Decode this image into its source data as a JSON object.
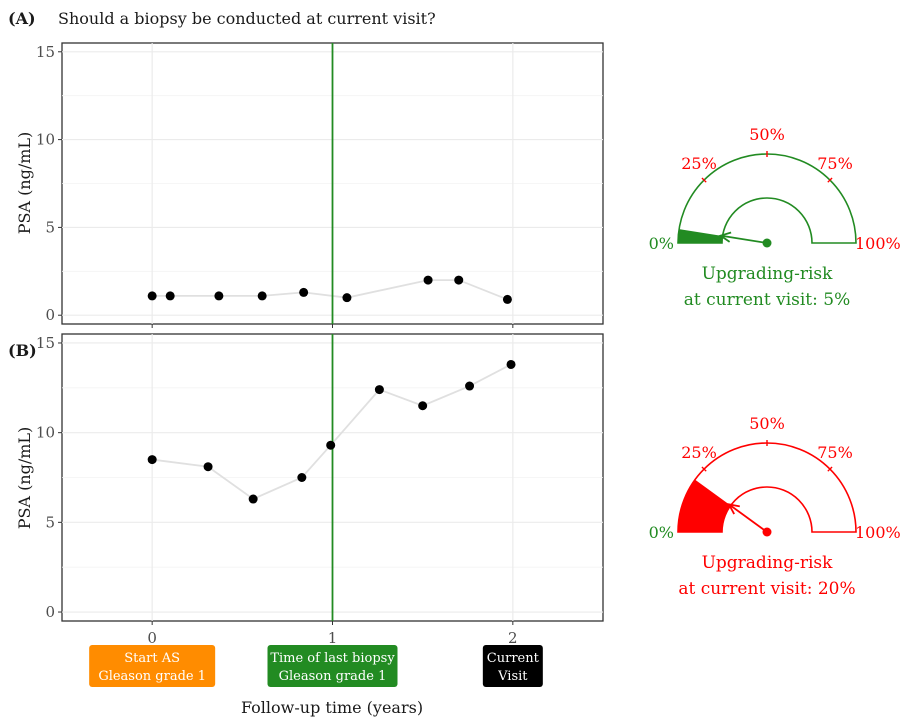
{
  "figure": {
    "title": "Should a biopsy be conducted at current visit?",
    "xlabel": "Follow-up time (years)",
    "panel_labels": [
      "(A)",
      "(B)"
    ],
    "colors": {
      "green": "#228B22",
      "red": "#ff0000",
      "orange": "#ff8c00",
      "black": "#000000",
      "line": "#e0e0e0",
      "grid": "#ebebeb"
    }
  },
  "events": [
    {
      "label_line1": "Start AS",
      "label_line2": "Gleason grade 1",
      "x": 0,
      "color": "#ff8c00"
    },
    {
      "label_line1": "Time of last biopsy",
      "label_line2": "Gleason grade 1",
      "x": 1,
      "color": "#228B22"
    },
    {
      "label_line1": "Current",
      "label_line2": "Visit",
      "x": 2,
      "color": "#000000"
    }
  ],
  "gauges": [
    {
      "risk_percent": 5,
      "color": "#228B22",
      "caption_line1": "Upgrading-risk",
      "caption_line2": "at current visit: 5%",
      "tick_labels": [
        "0%",
        "25%",
        "50%",
        "75%",
        "100%"
      ],
      "tick_colors": [
        "#228B22",
        "#ff0000",
        "#ff0000",
        "#ff0000",
        "#ff0000"
      ]
    },
    {
      "risk_percent": 20,
      "color": "#ff0000",
      "caption_line1": "Upgrading-risk",
      "caption_line2": "at current visit: 20%",
      "tick_labels": [
        "0%",
        "25%",
        "50%",
        "75%",
        "100%"
      ],
      "tick_colors": [
        "#228B22",
        "#ff0000",
        "#ff0000",
        "#ff0000",
        "#ff0000"
      ]
    }
  ],
  "chart_data": [
    {
      "type": "line",
      "panel": "(A)",
      "title": "Should a biopsy be conducted at current visit?",
      "xlabel": "Follow-up time (years)",
      "ylabel": "PSA  (ng/mL)",
      "xlim": [
        -0.5,
        2.5
      ],
      "ylim": [
        -0.5,
        15.5
      ],
      "x_ticks": [
        0,
        1,
        2
      ],
      "y_ticks": [
        0,
        5,
        10,
        15
      ],
      "grid": true,
      "vline_x": 1,
      "x": [
        0,
        0.1,
        0.37,
        0.61,
        0.84,
        1.08,
        1.53,
        1.7,
        1.97
      ],
      "y": [
        1.1,
        1.1,
        1.1,
        1.1,
        1.3,
        1.0,
        2.0,
        2.0,
        0.9
      ]
    },
    {
      "type": "line",
      "panel": "(B)",
      "xlabel": "Follow-up time (years)",
      "ylabel": "PSA  (ng/mL)",
      "xlim": [
        -0.5,
        2.5
      ],
      "ylim": [
        -0.5,
        15.5
      ],
      "x_ticks": [
        0,
        1,
        2
      ],
      "y_ticks": [
        0,
        5,
        10,
        15
      ],
      "grid": true,
      "vline_x": 1,
      "x": [
        0,
        0.31,
        0.56,
        0.83,
        0.99,
        1.26,
        1.5,
        1.76,
        1.99
      ],
      "y": [
        8.5,
        8.1,
        6.3,
        7.5,
        9.3,
        12.4,
        11.5,
        12.6,
        13.8
      ]
    }
  ]
}
